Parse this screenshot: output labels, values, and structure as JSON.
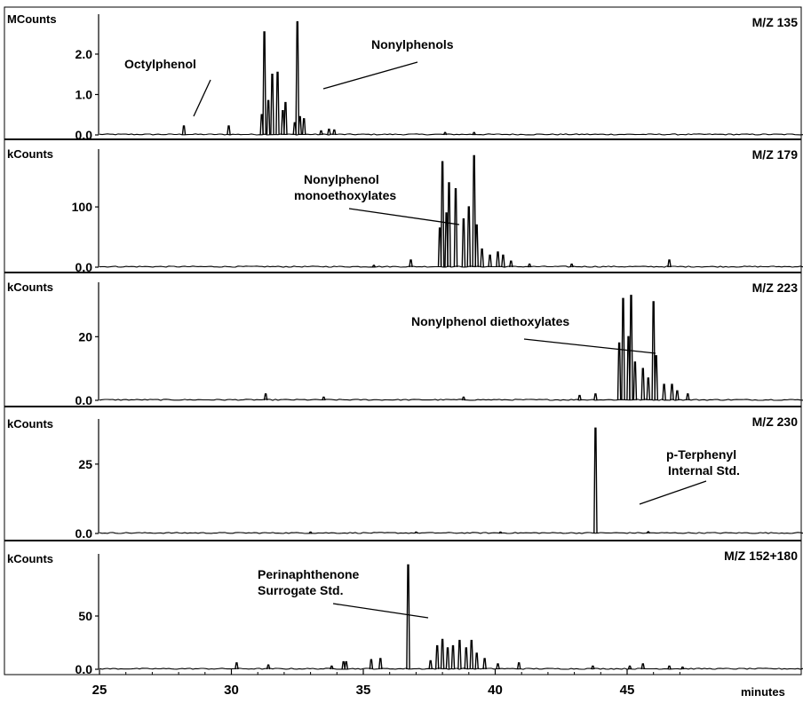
{
  "chart_data": {
    "type": "line",
    "x_axis": {
      "ticks": [
        25,
        30,
        35,
        40,
        45
      ],
      "tick_labels": [
        "25",
        "30",
        "35",
        "40",
        "45"
      ],
      "unit_label": "minutes",
      "xlim": [
        25,
        48
      ]
    },
    "panels": [
      {
        "unit": "MCounts",
        "mz_label": "M/Z 135",
        "ylim": [
          0,
          2.9
        ],
        "y_ticks": [
          0,
          1.0,
          2.0
        ],
        "y_tick_labels": [
          "0.0",
          "1.0",
          "2.0"
        ],
        "peaks": [
          [
            28.2,
            0.22
          ],
          [
            29.9,
            0.22
          ],
          [
            31.15,
            0.5
          ],
          [
            31.25,
            2.55
          ],
          [
            31.4,
            0.85
          ],
          [
            31.55,
            1.5
          ],
          [
            31.75,
            1.55
          ],
          [
            31.95,
            0.6
          ],
          [
            32.05,
            0.8
          ],
          [
            32.4,
            0.3
          ],
          [
            32.5,
            2.8
          ],
          [
            32.6,
            0.45
          ],
          [
            32.75,
            0.4
          ],
          [
            33.4,
            0.1
          ],
          [
            33.7,
            0.14
          ],
          [
            33.9,
            0.12
          ],
          [
            38.1,
            0.06
          ],
          [
            39.2,
            0.06
          ]
        ],
        "annotations": [
          {
            "label": "Octylphenol"
          },
          {
            "label": "Nonylphenols"
          }
        ]
      },
      {
        "unit": "kCounts",
        "mz_label": "M/Z 179",
        "ylim": [
          0,
          190
        ],
        "y_ticks": [
          0,
          100
        ],
        "y_tick_labels": [
          "0.0",
          "100"
        ],
        "peaks": [
          [
            35.4,
            3
          ],
          [
            36.8,
            12
          ],
          [
            37.9,
            65
          ],
          [
            38.0,
            175
          ],
          [
            38.15,
            90
          ],
          [
            38.25,
            140
          ],
          [
            38.5,
            130
          ],
          [
            38.8,
            80
          ],
          [
            39.0,
            100
          ],
          [
            39.2,
            185
          ],
          [
            39.3,
            70
          ],
          [
            39.5,
            30
          ],
          [
            39.8,
            20
          ],
          [
            40.1,
            25
          ],
          [
            40.3,
            20
          ],
          [
            40.6,
            10
          ],
          [
            41.3,
            5
          ],
          [
            42.9,
            5
          ],
          [
            46.6,
            12
          ]
        ],
        "annotations": [
          {
            "label": "Nonylphenol"
          },
          {
            "label": "monoethoxylates"
          }
        ]
      },
      {
        "unit": "kCounts",
        "mz_label": "M/Z 223",
        "ylim": [
          0,
          36
        ],
        "y_ticks": [
          0,
          20
        ],
        "y_tick_labels": [
          "0.0",
          "20"
        ],
        "peaks": [
          [
            31.3,
            2
          ],
          [
            33.5,
            1
          ],
          [
            38.8,
            1
          ],
          [
            43.2,
            1.5
          ],
          [
            43.8,
            2
          ],
          [
            44.7,
            18
          ],
          [
            44.85,
            32
          ],
          [
            45.05,
            20
          ],
          [
            45.15,
            33
          ],
          [
            45.3,
            12
          ],
          [
            45.6,
            10
          ],
          [
            45.8,
            7
          ],
          [
            46.0,
            31
          ],
          [
            46.1,
            14
          ],
          [
            46.4,
            5
          ],
          [
            46.7,
            5
          ],
          [
            46.9,
            3
          ],
          [
            47.3,
            2
          ]
        ],
        "annotations": [
          {
            "label": "Nonylphenol diethoxylates"
          }
        ]
      },
      {
        "unit": "kCounts",
        "mz_label": "M/Z 230",
        "ylim": [
          0,
          40
        ],
        "y_ticks": [
          0,
          25
        ],
        "y_tick_labels": [
          "0.0",
          "25"
        ],
        "peaks": [
          [
            33.0,
            0.5
          ],
          [
            37.0,
            0.5
          ],
          [
            40.2,
            0.5
          ],
          [
            43.8,
            38
          ],
          [
            45.8,
            0.6
          ]
        ],
        "annotations": [
          {
            "label": "p-Terphenyl"
          },
          {
            "label": "Internal Std."
          }
        ]
      },
      {
        "unit": "kCounts",
        "mz_label": "M/Z 152+180",
        "ylim": [
          0,
          105
        ],
        "y_ticks": [
          0,
          50
        ],
        "y_tick_labels": [
          "0.0",
          "50"
        ],
        "peaks": [
          [
            30.2,
            6
          ],
          [
            31.4,
            4
          ],
          [
            33.8,
            3
          ],
          [
            34.25,
            7
          ],
          [
            34.35,
            7
          ],
          [
            35.3,
            9
          ],
          [
            35.65,
            10
          ],
          [
            36.7,
            98
          ],
          [
            37.55,
            8
          ],
          [
            37.8,
            22
          ],
          [
            38.0,
            28
          ],
          [
            38.2,
            20
          ],
          [
            38.4,
            22
          ],
          [
            38.65,
            27
          ],
          [
            38.9,
            20
          ],
          [
            39.1,
            27
          ],
          [
            39.3,
            15
          ],
          [
            39.6,
            10
          ],
          [
            40.1,
            5
          ],
          [
            40.9,
            6
          ],
          [
            43.7,
            3
          ],
          [
            45.1,
            3
          ],
          [
            45.6,
            5
          ],
          [
            46.6,
            3
          ],
          [
            47.1,
            2
          ]
        ],
        "annotations": [
          {
            "label": "Perinaphthenone"
          },
          {
            "label": "Surrogate Std."
          }
        ]
      }
    ]
  }
}
